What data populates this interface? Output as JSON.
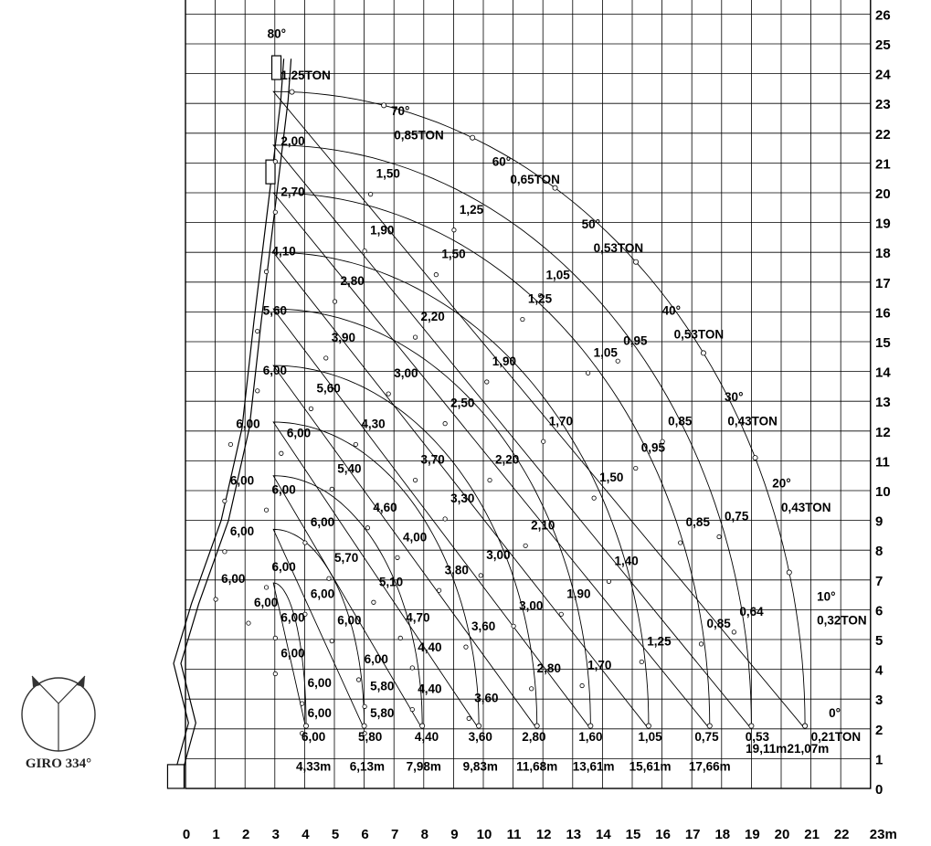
{
  "chart_data": {
    "type": "load-chart",
    "x_ticks": [
      "0",
      "1",
      "2",
      "3",
      "4",
      "5",
      "6",
      "7",
      "8",
      "9",
      "10",
      "11",
      "12",
      "13",
      "14",
      "15",
      "16",
      "17",
      "18",
      "19",
      "20",
      "21",
      "22",
      "23m"
    ],
    "y_ticks": [
      "0",
      "1",
      "2",
      "3",
      "4",
      "5",
      "6",
      "7",
      "8",
      "9",
      "10",
      "11",
      "12",
      "13",
      "14",
      "15",
      "16",
      "17",
      "18",
      "19",
      "20",
      "21",
      "22",
      "23",
      "24",
      "25",
      "26",
      "27m"
    ],
    "angles": [
      {
        "label": "80°",
        "load": "1,25TON"
      },
      {
        "label": "70°",
        "load": "0,85TON"
      },
      {
        "label": "60°",
        "load": "0,65TON"
      },
      {
        "label": "50°",
        "load": "0,53TON"
      },
      {
        "label": "40°",
        "load": "0,53TON"
      },
      {
        "label": "30°",
        "load": "0,43TON"
      },
      {
        "label": "20°",
        "load": "0,43TON"
      },
      {
        "label": "10°",
        "load": "0,32TON"
      },
      {
        "label": "0°",
        "load": "0,21TON"
      }
    ],
    "base_loads": [
      "6,00",
      "5,80",
      "4,40",
      "3,60",
      "2,80",
      "1,60",
      "1,05",
      "0,75",
      "0,53"
    ],
    "max_reach": [
      "4,33m",
      "6,13m",
      "7,98m",
      "9,83m",
      "11,68m",
      "13,61m",
      "15,61m",
      "17,66m",
      "19,11m",
      "21,07m"
    ],
    "curve_loads": [
      [
        "2,00",
        "1,50",
        "1,25",
        "1,05",
        "0,95",
        "0,85",
        "0,75",
        "0,64"
      ],
      [
        "2,70",
        "1,90",
        "1,50",
        "1,25",
        "1,05",
        "0,95",
        "0,85",
        "0,85"
      ],
      [
        "4,10",
        "2,80",
        "2,20",
        "1,90",
        "1,70",
        "1,50",
        "1,40",
        "1,25"
      ],
      [
        "5,60",
        "3,90",
        "3,00",
        "2,50",
        "2,20",
        "2,10",
        "1,90",
        "1,70"
      ],
      [
        "6,00",
        "5,60",
        "4,30",
        "3,70",
        "3,30",
        "3,00",
        "3,00",
        "2,80"
      ],
      [
        "6,00",
        "6,00",
        "5,40",
        "4,60",
        "4,00",
        "3,80",
        "3,60",
        "3,60"
      ],
      [
        "6,00",
        "6,00",
        "6,00",
        "5,70",
        "5,10",
        "4,70",
        "4,40",
        "4,40"
      ],
      [
        "6,00",
        "6,00",
        "6,00",
        "6,00",
        "6,00",
        "5,80",
        "5,80"
      ],
      [
        "6,00",
        "6,00",
        "6,00",
        "6,00",
        "6,00",
        "6,00"
      ]
    ],
    "rotation": "GIRO 334°"
  }
}
